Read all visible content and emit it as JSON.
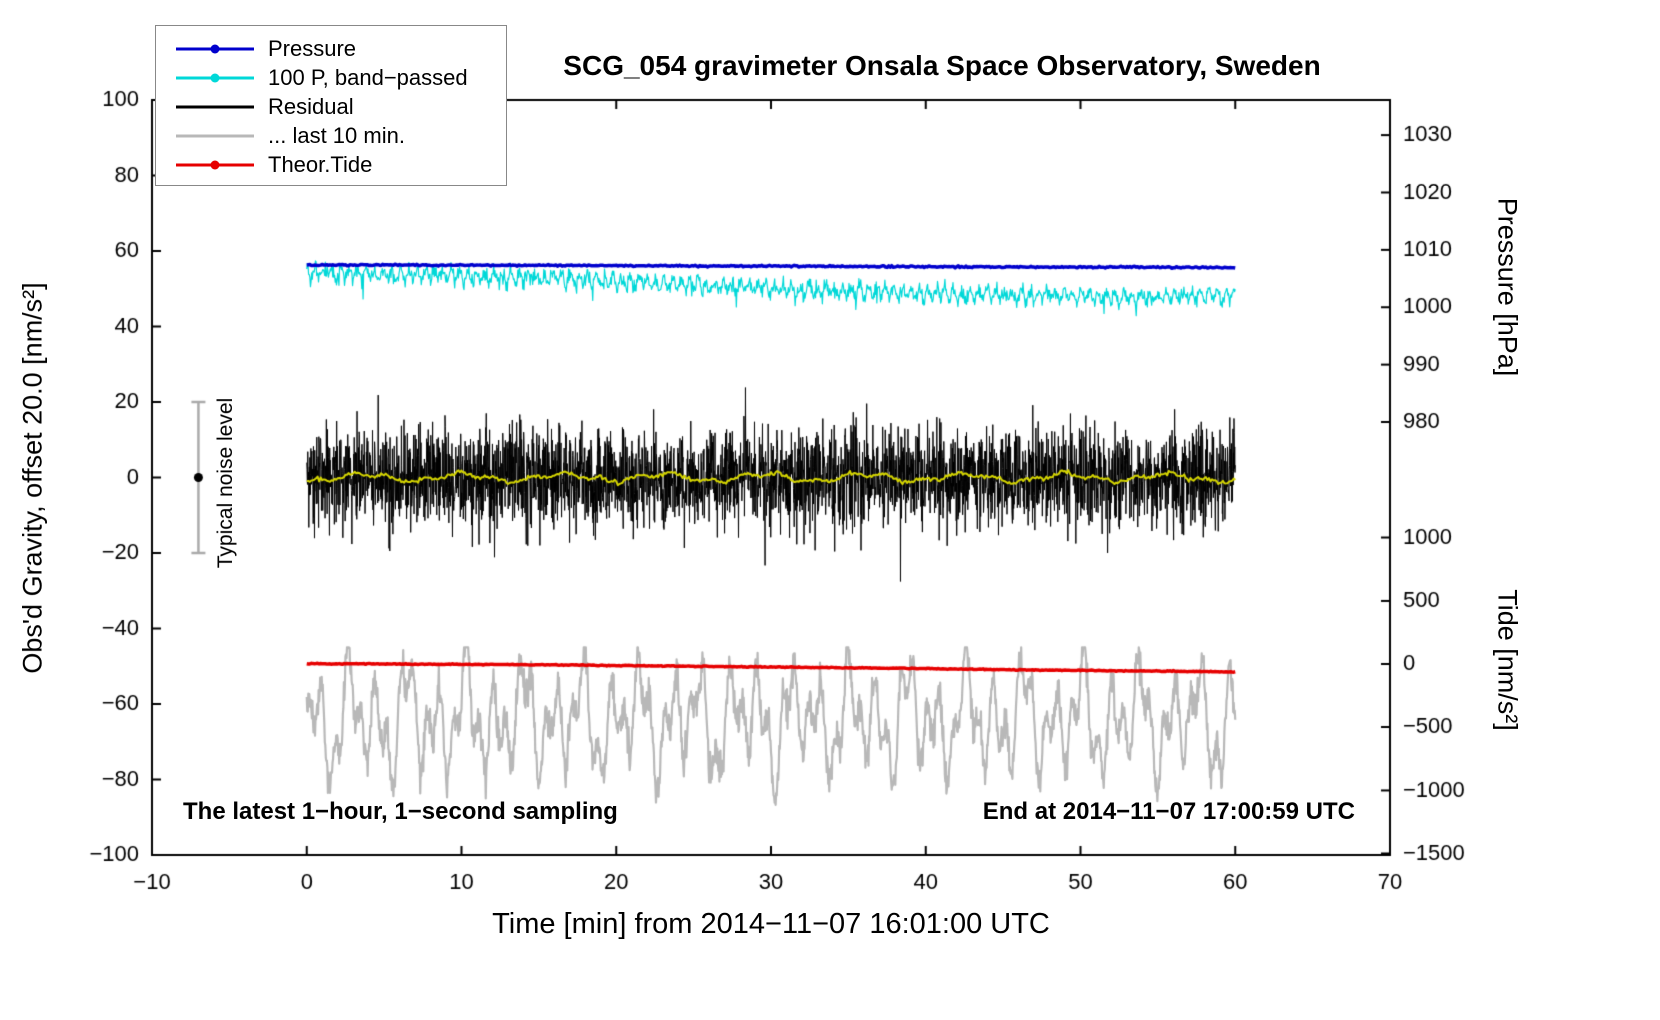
{
  "title": "SCG_054 gravimeter Onsala Space Observatory, Sweden",
  "annotations": {
    "sampling": "The latest 1−hour, 1−second sampling",
    "end": "End at 2014−11−07 17:00:59 UTC",
    "noise_label": "Typical noise level"
  },
  "legend": [
    {
      "label": "Pressure",
      "color": "#0000cd",
      "dot": true
    },
    {
      "label": "100 P, band−passed",
      "color": "#00d8d8",
      "dot": true
    },
    {
      "label": "Residual",
      "color": "#000000",
      "dot": false
    },
    {
      "label": "... last 10 min.",
      "color": "#b8b8b8",
      "dot": false
    },
    {
      "label": "Theor.Tide",
      "color": "#e60000",
      "dot": true
    }
  ],
  "chart_data": {
    "type": "line",
    "seed": 54,
    "x_axis": {
      "label": "Time [min] from 2014−11−07 16:01:00 UTC",
      "min": -10,
      "max": 70,
      "tick_values": [
        -10,
        0,
        10,
        20,
        30,
        40,
        50,
        60,
        70
      ],
      "tick_labels": [
        "−10",
        "0",
        "10",
        "20",
        "30",
        "40",
        "50",
        "60",
        "70"
      ]
    },
    "y_axis_left": {
      "label": "Obs'd Gravity, offset 20.0 [nm/s²]",
      "min": -100,
      "max": 100,
      "tick_values": [
        -100,
        -80,
        -60,
        -40,
        -20,
        0,
        20,
        40,
        60,
        80,
        100
      ],
      "tick_labels": [
        "−100",
        "−80",
        "−60",
        "−40",
        "−20",
        "0",
        "20",
        "40",
        "60",
        "80",
        "100"
      ]
    },
    "y_axis_pressure": {
      "label": "Pressure [hPa]",
      "ticks": [
        {
          "label": "1030",
          "gravity": 90.7
        },
        {
          "label": "1020",
          "gravity": 75.5
        },
        {
          "label": "1010",
          "gravity": 60.3
        },
        {
          "label": "1000",
          "gravity": 45.1
        },
        {
          "label": "990",
          "gravity": 29.9
        },
        {
          "label": "980",
          "gravity": 14.7
        }
      ]
    },
    "y_axis_tide": {
      "label": "Tide [nm/s²]",
      "ticks": [
        {
          "label": "1000",
          "gravity": -15.9
        },
        {
          "label": "500",
          "gravity": -32.7
        },
        {
          "label": "0",
          "gravity": -49.4
        },
        {
          "label": "−500",
          "gravity": -66.1
        },
        {
          "label": "−1000",
          "gravity": -82.9
        },
        {
          "label": "−1500",
          "gravity": -99.6
        }
      ]
    },
    "noise_bar": {
      "x": -7,
      "center": 0,
      "half_range": 20,
      "bar_color": "#aaaaaa",
      "dot_color": "#000000"
    },
    "anchor_x_minutes": [
      0,
      5,
      10,
      15,
      20,
      25,
      30,
      35,
      40,
      45,
      50,
      55,
      60
    ],
    "series": [
      {
        "name": "100 P, band−passed",
        "color": "#00d8d8",
        "width": 1.2,
        "x_start": 0,
        "x_end": 60,
        "points_per_min": 25,
        "anchors_y": [
          54.3,
          54.0,
          53.4,
          52.8,
          52.0,
          51.0,
          50.2,
          49.4,
          48.8,
          48.3,
          48.0,
          47.8,
          48.2
        ],
        "waves": [
          {
            "amp": 1.3,
            "period": 0.55
          }
        ],
        "noise": 1.0,
        "spike": {
          "prob": 0.015,
          "amp": -5.5,
          "symmetric": false
        }
      },
      {
        "name": "Pressure",
        "color": "#0000cd",
        "width": 3.5,
        "x_start": 0,
        "x_end": 60,
        "points_per_min": 10,
        "anchors_y": [
          56.3,
          56.3,
          56.25,
          56.2,
          56.1,
          56.05,
          56.0,
          55.9,
          55.85,
          55.8,
          55.75,
          55.7,
          55.6
        ],
        "anchors_hPa": [
          1007.4,
          1007.4,
          1007.3,
          1007.3,
          1007.2,
          1007.2,
          1007.2,
          1007.1,
          1007.0,
          1007.0,
          1007.0,
          1006.9,
          1006.9
        ],
        "noise": 0.1
      },
      {
        "name": "Residual",
        "color": "#000000",
        "width": 1,
        "x_start": 0,
        "x_end": 60,
        "points_per_min": 60,
        "center": 0,
        "noise": 6.3,
        "spike": {
          "prob": 0.012,
          "amp": 16,
          "symmetric": true
        },
        "clip": [
          -32,
          30
        ],
        "stats": {
          "mean": 0,
          "typical_range": "±15",
          "extremes": "±30"
        }
      },
      {
        "name": "Residual smoothed",
        "color": "#d4d400",
        "width": 2,
        "x_start": 0,
        "x_end": 60,
        "points_per_min": 10,
        "center": 0,
        "waves": [
          {
            "amp": 0.9,
            "period": 6.5
          },
          {
            "amp": 0.5,
            "period": 2.3
          }
        ],
        "noise": 0.3
      },
      {
        "name": "... last 10 min.",
        "color": "#b8b8b8",
        "width": 2.2,
        "x_start": 0,
        "x_end": 60,
        "points_per_min": 30,
        "center": -64,
        "waves": [
          {
            "amp": 9,
            "period": 1.9
          },
          {
            "amp": 7,
            "period": 0.85
          },
          {
            "amp": 5.5,
            "period": 3.6
          }
        ],
        "noise": 2.2,
        "clip": [
          -88,
          -45
        ]
      },
      {
        "name": "Theor.Tide",
        "color": "#e60000",
        "width": 3.5,
        "x_start": 0,
        "x_end": 60,
        "points_per_min": 10,
        "anchors_y": [
          -49.3,
          -49.4,
          -49.5,
          -49.6,
          -49.8,
          -50.0,
          -50.2,
          -50.4,
          -50.6,
          -50.9,
          -51.1,
          -51.3,
          -51.5
        ],
        "anchors_tide_nms2": [
          3,
          0,
          -3,
          -6,
          -12,
          -18,
          -24,
          -30,
          -36,
          -45,
          -51,
          -57,
          -63
        ],
        "noise": 0.06
      }
    ]
  }
}
